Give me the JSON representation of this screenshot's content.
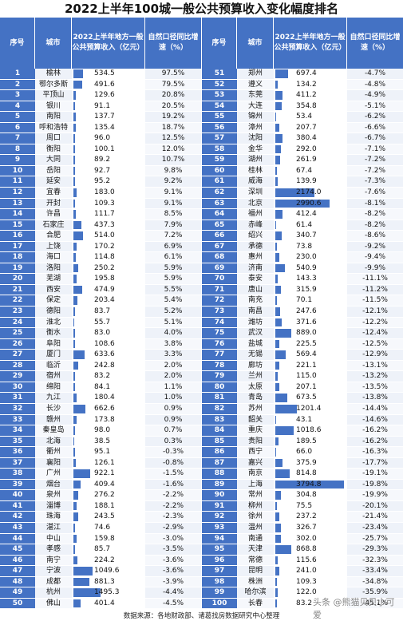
{
  "title": "2022上半年100城一般公共预算收入变化幅度排名",
  "headers": {
    "idx": "序号",
    "city": "城市",
    "value": "2022上半年地方一般公共预算收入（亿元）",
    "growth": "自然口径同比增速（%）"
  },
  "left_rows": [
    {
      "idx": "1",
      "city": "榆林",
      "value": "534.5",
      "growth": "97.5%"
    },
    {
      "idx": "2",
      "city": "鄂尔多斯",
      "value": "491.6",
      "growth": "79.5%"
    },
    {
      "idx": "3",
      "city": "平顶山",
      "value": "129.6",
      "growth": "20.8%"
    },
    {
      "idx": "4",
      "city": "银川",
      "value": "91.1",
      "growth": "20.5%"
    },
    {
      "idx": "5",
      "city": "南阳",
      "value": "137.7",
      "growth": "19.2%"
    },
    {
      "idx": "6",
      "city": "呼和浩特",
      "value": "135.4",
      "growth": "18.7%"
    },
    {
      "idx": "7",
      "city": "周口",
      "value": "96.0",
      "growth": "12.5%"
    },
    {
      "idx": "8",
      "city": "衡阳",
      "value": "100.1",
      "growth": "12.0%"
    },
    {
      "idx": "9",
      "city": "大同",
      "value": "89.2",
      "growth": "10.7%"
    },
    {
      "idx": "10",
      "city": "岳阳",
      "value": "92.7",
      "growth": "9.8%"
    },
    {
      "idx": "11",
      "city": "延安",
      "value": "95.2",
      "growth": "9.2%"
    },
    {
      "idx": "12",
      "city": "宜春",
      "value": "183.0",
      "growth": "9.1%"
    },
    {
      "idx": "13",
      "city": "开封",
      "value": "109.3",
      "growth": "9.1%"
    },
    {
      "idx": "14",
      "city": "许昌",
      "value": "111.7",
      "growth": "8.5%"
    },
    {
      "idx": "15",
      "city": "石家庄",
      "value": "437.3",
      "growth": "7.9%"
    },
    {
      "idx": "16",
      "city": "合肥",
      "value": "514.0",
      "growth": "7.2%"
    },
    {
      "idx": "17",
      "city": "上饶",
      "value": "170.2",
      "growth": "6.9%"
    },
    {
      "idx": "18",
      "city": "海口",
      "value": "114.8",
      "growth": "6.1%"
    },
    {
      "idx": "19",
      "city": "洛阳",
      "value": "250.2",
      "growth": "5.9%"
    },
    {
      "idx": "20",
      "city": "芜湖",
      "value": "195.8",
      "growth": "5.9%"
    },
    {
      "idx": "21",
      "city": "西安",
      "value": "474.9",
      "growth": "5.5%"
    },
    {
      "idx": "22",
      "city": "保定",
      "value": "203.4",
      "growth": "5.4%"
    },
    {
      "idx": "23",
      "city": "德阳",
      "value": "83.7",
      "growth": "5.2%"
    },
    {
      "idx": "24",
      "city": "淮北",
      "value": "55.7",
      "growth": "5.1%"
    },
    {
      "idx": "25",
      "city": "衡水",
      "value": "83.0",
      "growth": "4.0%"
    },
    {
      "idx": "26",
      "city": "阜阳",
      "value": "108.6",
      "growth": "3.8%"
    },
    {
      "idx": "27",
      "city": "厦门",
      "value": "633.6",
      "growth": "3.3%"
    },
    {
      "idx": "28",
      "city": "临沂",
      "value": "242.8",
      "growth": "2.0%"
    },
    {
      "idx": "29",
      "city": "宿州",
      "value": "83.2",
      "growth": "2.0%"
    },
    {
      "idx": "30",
      "city": "绵阳",
      "value": "84.1",
      "growth": "1.1%"
    },
    {
      "idx": "31",
      "city": "九江",
      "value": "180.4",
      "growth": "1.0%"
    },
    {
      "idx": "32",
      "city": "长沙",
      "value": "662.6",
      "growth": "0.9%"
    },
    {
      "idx": "33",
      "city": "赣州",
      "value": "173.8",
      "growth": "0.9%"
    },
    {
      "idx": "34",
      "city": "秦皇岛",
      "value": "98.0",
      "growth": "0.7%"
    },
    {
      "idx": "35",
      "city": "北海",
      "value": "38.5",
      "growth": "0.3%"
    },
    {
      "idx": "36",
      "city": "衢州",
      "value": "95.1",
      "growth": "-0.3%"
    },
    {
      "idx": "37",
      "city": "襄阳",
      "value": "126.1",
      "growth": "-0.8%"
    },
    {
      "idx": "38",
      "city": "广州",
      "value": "922.1",
      "growth": "-1.5%"
    },
    {
      "idx": "39",
      "city": "烟台",
      "value": "409.4",
      "growth": "-1.6%"
    },
    {
      "idx": "40",
      "city": "泉州",
      "value": "276.2",
      "growth": "-2.2%"
    },
    {
      "idx": "41",
      "city": "淄博",
      "value": "188.1",
      "growth": "-2.2%"
    },
    {
      "idx": "42",
      "city": "珠海",
      "value": "243.5",
      "growth": "-2.3%"
    },
    {
      "idx": "43",
      "city": "湛江",
      "value": "74.6",
      "growth": "-2.9%"
    },
    {
      "idx": "44",
      "city": "中山",
      "value": "159.8",
      "growth": "-3.0%"
    },
    {
      "idx": "45",
      "city": "孝感",
      "value": "85.7",
      "growth": "-3.5%"
    },
    {
      "idx": "46",
      "city": "南宁",
      "value": "224.2",
      "growth": "-3.6%"
    },
    {
      "idx": "47",
      "city": "宁波",
      "value": "1049.6",
      "growth": "-3.6%"
    },
    {
      "idx": "48",
      "city": "成都",
      "value": "881.3",
      "growth": "-3.9%"
    },
    {
      "idx": "49",
      "city": "杭州",
      "value": "1495.3",
      "growth": "-4.4%"
    },
    {
      "idx": "50",
      "city": "佛山",
      "value": "401.4",
      "growth": "-4.5%"
    }
  ],
  "right_rows": [
    {
      "idx": "51",
      "city": "郑州",
      "value": "697.4",
      "growth": "-4.7%"
    },
    {
      "idx": "52",
      "city": "遵义",
      "value": "134.2",
      "growth": "-4.8%"
    },
    {
      "idx": "53",
      "city": "东莞",
      "value": "411.2",
      "growth": "-4.9%"
    },
    {
      "idx": "54",
      "city": "大连",
      "value": "354.8",
      "growth": "-5.1%"
    },
    {
      "idx": "55",
      "city": "锦州",
      "value": "53.4",
      "growth": "-6.2%"
    },
    {
      "idx": "56",
      "city": "漳州",
      "value": "207.7",
      "growth": "-6.6%"
    },
    {
      "idx": "57",
      "city": "沈阳",
      "value": "380.4",
      "growth": "-6.7%"
    },
    {
      "idx": "58",
      "city": "金华",
      "value": "292.0",
      "growth": "-7.1%"
    },
    {
      "idx": "59",
      "city": "湖州",
      "value": "261.9",
      "growth": "-7.2%"
    },
    {
      "idx": "60",
      "city": "桂林",
      "value": "67.4",
      "growth": "-7.2%"
    },
    {
      "idx": "61",
      "city": "威海",
      "value": "139.9",
      "growth": "-7.3%"
    },
    {
      "idx": "62",
      "city": "深圳",
      "value": "2174.0",
      "growth": "-7.6%"
    },
    {
      "idx": "63",
      "city": "北京",
      "value": "2990.6",
      "growth": "-8.1%"
    },
    {
      "idx": "64",
      "city": "福州",
      "value": "412.4",
      "growth": "-8.2%"
    },
    {
      "idx": "65",
      "city": "赤峰",
      "value": "61.4",
      "growth": "-8.2%"
    },
    {
      "idx": "66",
      "city": "绍兴",
      "value": "340.7",
      "growth": "-8.6%"
    },
    {
      "idx": "67",
      "city": "承德",
      "value": "73.8",
      "growth": "-9.2%"
    },
    {
      "idx": "68",
      "city": "惠州",
      "value": "230.0",
      "growth": "-9.4%"
    },
    {
      "idx": "69",
      "city": "济南",
      "value": "540.9",
      "growth": "-9.9%"
    },
    {
      "idx": "70",
      "city": "泰安",
      "value": "143.3",
      "growth": "-11.1%"
    },
    {
      "idx": "71",
      "city": "唐山",
      "value": "315.9",
      "growth": "-11.2%"
    },
    {
      "idx": "72",
      "city": "南充",
      "value": "70.1",
      "growth": "-11.5%"
    },
    {
      "idx": "73",
      "city": "南昌",
      "value": "247.6",
      "growth": "-12.1%"
    },
    {
      "idx": "74",
      "city": "潍坊",
      "value": "371.6",
      "growth": "-12.2%"
    },
    {
      "idx": "75",
      "city": "武汉",
      "value": "889.0",
      "growth": "-12.4%"
    },
    {
      "idx": "76",
      "city": "盐城",
      "value": "225.5",
      "growth": "-12.5%"
    },
    {
      "idx": "77",
      "city": "无锡",
      "value": "569.4",
      "growth": "-12.9%"
    },
    {
      "idx": "78",
      "city": "廊坊",
      "value": "221.1",
      "growth": "-13.1%"
    },
    {
      "idx": "79",
      "city": "兰州",
      "value": "115.0",
      "growth": "-13.2%"
    },
    {
      "idx": "80",
      "city": "太原",
      "value": "207.1",
      "growth": "-13.5%"
    },
    {
      "idx": "81",
      "city": "青岛",
      "value": "673.5",
      "growth": "-13.8%"
    },
    {
      "idx": "82",
      "city": "苏州",
      "value": "1201.4",
      "growth": "-14.4%"
    },
    {
      "idx": "83",
      "city": "韶关",
      "value": "43.1",
      "growth": "-14.6%"
    },
    {
      "idx": "84",
      "city": "重庆",
      "value": "1018.6",
      "growth": "-16.2%"
    },
    {
      "idx": "85",
      "city": "贵阳",
      "value": "189.5",
      "growth": "-16.2%"
    },
    {
      "idx": "86",
      "city": "西宁",
      "value": "66.0",
      "growth": "-16.3%"
    },
    {
      "idx": "87",
      "city": "嘉兴",
      "value": "375.9",
      "growth": "-17.7%"
    },
    {
      "idx": "88",
      "city": "南京",
      "value": "814.8",
      "growth": "-19.1%"
    },
    {
      "idx": "89",
      "city": "上海",
      "value": "3794.8",
      "growth": "-19.8%"
    },
    {
      "idx": "90",
      "city": "常州",
      "value": "304.8",
      "growth": "-19.9%"
    },
    {
      "idx": "91",
      "city": "柳州",
      "value": "75.5",
      "growth": "-20.1%"
    },
    {
      "idx": "92",
      "city": "徐州",
      "value": "237.2",
      "growth": "-21.4%"
    },
    {
      "idx": "93",
      "city": "温州",
      "value": "326.7",
      "growth": "-23.4%"
    },
    {
      "idx": "94",
      "city": "南通",
      "value": "302.0",
      "growth": "-25.7%"
    },
    {
      "idx": "95",
      "city": "天津",
      "value": "868.8",
      "growth": "-29.3%"
    },
    {
      "idx": "96",
      "city": "常德",
      "value": "115.6",
      "growth": "-32.3%"
    },
    {
      "idx": "97",
      "city": "昆明",
      "value": "241.0",
      "growth": "-33.4%"
    },
    {
      "idx": "98",
      "city": "株洲",
      "value": "109.3",
      "growth": "-34.8%"
    },
    {
      "idx": "99",
      "city": "哈尔滨",
      "value": "122.0",
      "growth": "-35.9%"
    },
    {
      "idx": "100",
      "city": "长春",
      "value": "83.2",
      "growth": "-45.1%"
    }
  ],
  "bar_color": "#4472c4",
  "bar_max_value": 3794.8,
  "source": "数据来源：各地财政部、诸葛找房数据研究中心整理",
  "watermark": "头条 @熊猫贝贝小可爱"
}
